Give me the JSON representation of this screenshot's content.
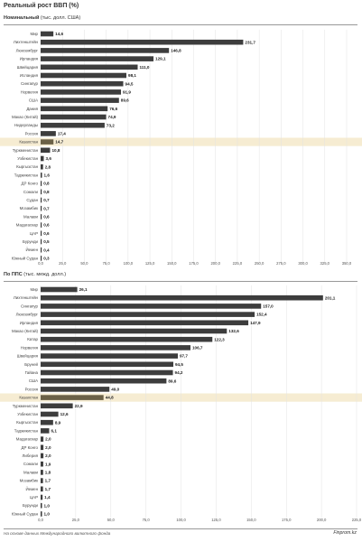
{
  "title": "Реальный рост ВВП (%)",
  "footer": {
    "source": "На основе данных Международного валютного фонда",
    "brand": "Finprom.kz"
  },
  "colors": {
    "bar": "#3d3d3d",
    "highlight_bar": "#6b6147",
    "highlight_band": "#f6ecd2",
    "grid": "#e3e3e3"
  },
  "chart_data": [
    {
      "type": "bar",
      "orientation": "horizontal",
      "title": "Номинальный",
      "subtitle": "(тыс. долл. США)",
      "highlight": "Казахстан",
      "xlim": [
        0,
        350
      ],
      "xticks": [
        "0,0",
        "25,0",
        "50,0",
        "75,0",
        "100,0",
        "125,0",
        "150,0",
        "175,0",
        "200,0",
        "225,0",
        "250,0",
        "275,0",
        "300,0",
        "325,0",
        "350,0"
      ],
      "categories": [
        "Мир",
        "Лихтенштейн",
        "Люксембург",
        "Ирландия",
        "Швейцария",
        "Исландия",
        "Сингапур",
        "Норвегия",
        "США",
        "Дания",
        "Макао (Китай)",
        "Нидерланды",
        "Россия",
        "Казахстан",
        "Туркменистан",
        "Узбекистан",
        "Кыргызстан",
        "Таджикистан",
        "ДР Конго",
        "Сомали",
        "Судан",
        "Мозамбик",
        "Малави",
        "Мадагаскар",
        "ЦАР",
        "Бурунди",
        "Йемен",
        "Южный Судан"
      ],
      "values": [
        14.6,
        231.7,
        146.8,
        129.1,
        111.0,
        98.1,
        94.5,
        91.9,
        89.6,
        76.6,
        74.9,
        73.2,
        17.4,
        14.7,
        10.8,
        3.6,
        2.8,
        1.6,
        0.8,
        0.8,
        0.7,
        0.7,
        0.6,
        0.6,
        0.6,
        0.5,
        0.4,
        0.3
      ],
      "value_labels": [
        "14,6",
        "231,7",
        "146,8",
        "129,1",
        "111,0",
        "98,1",
        "94,5",
        "91,9",
        "89,6",
        "76,6",
        "74,9",
        "73,2",
        "17,4",
        "14,7",
        "10,8",
        "3,6",
        "2,8",
        "1,6",
        "0,8",
        "0,8",
        "0,7",
        "0,7",
        "0,6",
        "0,6",
        "0,6",
        "0,5",
        "0,4",
        "0,3"
      ]
    },
    {
      "type": "bar",
      "orientation": "horizontal",
      "title": "По ППС",
      "subtitle": "(тыс. межд. долл.)",
      "highlight": "Казахстан",
      "xlim": [
        0,
        225
      ],
      "xticks": [
        "0,0",
        "25,0",
        "50,0",
        "75,0",
        "100,0",
        "125,0",
        "150,0",
        "175,0",
        "200,0",
        "225,0"
      ],
      "categories": [
        "Мир",
        "Лихтенштейн",
        "Сингапур",
        "Люксембург",
        "Ирландия",
        "Макао (Китай)",
        "Катар",
        "Норвегия",
        "Швейцария",
        "Бруней",
        "Гайана",
        "США",
        "Россия",
        "Казахстан",
        "Туркменистан",
        "Узбекистан",
        "Кыргызстан",
        "Таджикистан",
        "Мадагаскар",
        "ДР Конго",
        "Либерия",
        "Сомали",
        "Малави",
        "Мозамбик",
        "Йемен",
        "ЦАР",
        "Бурунди",
        "Южный Судан"
      ],
      "values": [
        26.1,
        201.1,
        157.0,
        152.4,
        147.9,
        132.6,
        122.3,
        106.7,
        97.7,
        94.5,
        94.2,
        89.6,
        49.0,
        44.8,
        22.9,
        12.6,
        8.9,
        6.1,
        2.0,
        2.0,
        2.0,
        1.9,
        1.8,
        1.7,
        1.7,
        1.4,
        1.0,
        1.0
      ],
      "value_labels": [
        "26,1",
        "201,1",
        "157,0",
        "152,4",
        "147,9",
        "132,6",
        "122,3",
        "106,7",
        "97,7",
        "94,5",
        "94,2",
        "89,6",
        "49,0",
        "44,8",
        "22,9",
        "12,6",
        "8,9",
        "6,1",
        "2,0",
        "2,0",
        "2,0",
        "1,9",
        "1,8",
        "1,7",
        "1,7",
        "1,4",
        "1,0",
        "1,0"
      ]
    }
  ]
}
